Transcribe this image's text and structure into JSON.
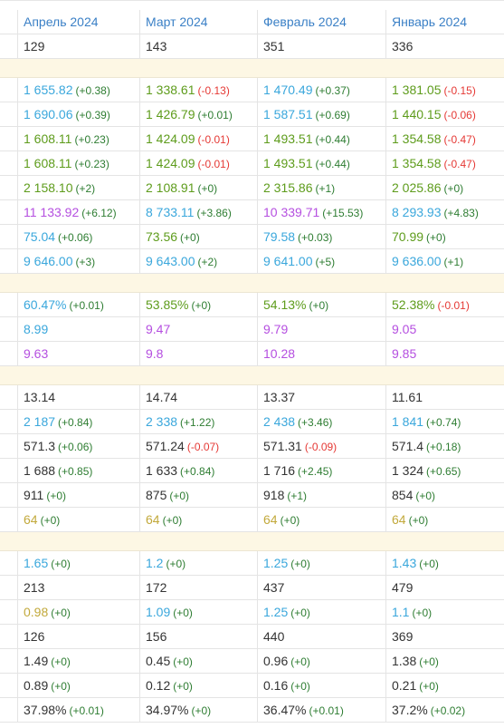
{
  "header": [
    "Апрель 2024",
    "Март 2024",
    "Февраль 2024",
    "Январь 2024"
  ],
  "sections": [
    {
      "rows": [
        [
          {
            "text": "129",
            "color": "#333333"
          },
          {
            "text": "143",
            "color": "#333333"
          },
          {
            "text": "351",
            "color": "#333333"
          },
          {
            "text": "336",
            "color": "#333333"
          }
        ]
      ]
    },
    {
      "rows": [
        [
          {
            "text": "1 655.82",
            "delta": "(+0.38)",
            "color": "#3aa7dc"
          },
          {
            "text": "1 338.61",
            "delta": "(-0.13)",
            "color": "#5e9c1c"
          },
          {
            "text": "1 470.49",
            "delta": "(+0.37)",
            "color": "#3aa7dc"
          },
          {
            "text": "1 381.05",
            "delta": "(-0.15)",
            "color": "#5e9c1c"
          }
        ],
        [
          {
            "text": "1 690.06",
            "delta": "(+0.39)",
            "color": "#3aa7dc"
          },
          {
            "text": "1 426.79",
            "delta": "(+0.01)",
            "color": "#5e9c1c"
          },
          {
            "text": "1 587.51",
            "delta": "(+0.69)",
            "color": "#3aa7dc"
          },
          {
            "text": "1 440.15",
            "delta": "(-0.06)",
            "color": "#5e9c1c"
          }
        ],
        [
          {
            "text": "1 608.11",
            "delta": "(+0.23)",
            "color": "#5e9c1c"
          },
          {
            "text": "1 424.09",
            "delta": "(-0.01)",
            "color": "#5e9c1c"
          },
          {
            "text": "1 493.51",
            "delta": "(+0.44)",
            "color": "#5e9c1c"
          },
          {
            "text": "1 354.58",
            "delta": "(-0.47)",
            "color": "#5e9c1c"
          }
        ],
        [
          {
            "text": "1 608.11",
            "delta": "(+0.23)",
            "color": "#5e9c1c"
          },
          {
            "text": "1 424.09",
            "delta": "(-0.01)",
            "color": "#5e9c1c"
          },
          {
            "text": "1 493.51",
            "delta": "(+0.44)",
            "color": "#5e9c1c"
          },
          {
            "text": "1 354.58",
            "delta": "(-0.47)",
            "color": "#5e9c1c"
          }
        ],
        [
          {
            "text": "2 158.10",
            "delta": "(+2)",
            "color": "#5e9c1c"
          },
          {
            "text": "2 108.91",
            "delta": "(+0)",
            "color": "#5e9c1c"
          },
          {
            "text": "2 315.86",
            "delta": "(+1)",
            "color": "#5e9c1c"
          },
          {
            "text": "2 025.86",
            "delta": "(+0)",
            "color": "#5e9c1c"
          }
        ],
        [
          {
            "text": "11 133.92",
            "delta": "(+6.12)",
            "color": "#b54fe0"
          },
          {
            "text": "8 733.11",
            "delta": "(+3.86)",
            "color": "#3aa7dc"
          },
          {
            "text": "10 339.71",
            "delta": "(+15.53)",
            "color": "#b54fe0"
          },
          {
            "text": "8 293.93",
            "delta": "(+4.83)",
            "color": "#3aa7dc"
          }
        ],
        [
          {
            "text": "75.04",
            "delta": "(+0.06)",
            "color": "#3aa7dc"
          },
          {
            "text": "73.56",
            "delta": "(+0)",
            "color": "#5e9c1c"
          },
          {
            "text": "79.58",
            "delta": "(+0.03)",
            "color": "#3aa7dc"
          },
          {
            "text": "70.99",
            "delta": "(+0)",
            "color": "#5e9c1c"
          }
        ],
        [
          {
            "text": "9 646.00",
            "delta": "(+3)",
            "color": "#3aa7dc"
          },
          {
            "text": "9 643.00",
            "delta": "(+2)",
            "color": "#3aa7dc"
          },
          {
            "text": "9 641.00",
            "delta": "(+5)",
            "color": "#3aa7dc"
          },
          {
            "text": "9 636.00",
            "delta": "(+1)",
            "color": "#3aa7dc"
          }
        ]
      ]
    },
    {
      "rows": [
        [
          {
            "text": "60.47%",
            "delta": "(+0.01)",
            "color": "#3aa7dc"
          },
          {
            "text": "53.85%",
            "delta": "(+0)",
            "color": "#5e9c1c"
          },
          {
            "text": "54.13%",
            "delta": "(+0)",
            "color": "#5e9c1c"
          },
          {
            "text": "52.38%",
            "delta": "(-0.01)",
            "color": "#5e9c1c"
          }
        ],
        [
          {
            "text": "8.99",
            "color": "#3aa7dc"
          },
          {
            "text": "9.47",
            "color": "#b54fe0"
          },
          {
            "text": "9.79",
            "color": "#b54fe0"
          },
          {
            "text": "9.05",
            "color": "#b54fe0"
          }
        ],
        [
          {
            "text": "9.63",
            "color": "#b54fe0"
          },
          {
            "text": "9.8",
            "color": "#b54fe0"
          },
          {
            "text": "10.28",
            "color": "#b54fe0"
          },
          {
            "text": "9.85",
            "color": "#b54fe0"
          }
        ]
      ]
    },
    {
      "rows": [
        [
          {
            "text": "13.14",
            "color": "#333333"
          },
          {
            "text": "14.74",
            "color": "#333333"
          },
          {
            "text": "13.37",
            "color": "#333333"
          },
          {
            "text": "11.61",
            "color": "#333333"
          }
        ],
        [
          {
            "text": "2 187",
            "delta": "(+0.84)",
            "color": "#3aa7dc"
          },
          {
            "text": "2 338",
            "delta": "(+1.22)",
            "color": "#3aa7dc"
          },
          {
            "text": "2 438",
            "delta": "(+3.46)",
            "color": "#3aa7dc"
          },
          {
            "text": "1 841",
            "delta": "(+0.74)",
            "color": "#3aa7dc"
          }
        ],
        [
          {
            "text": "571.3",
            "delta": "(+0.06)",
            "color": "#333333"
          },
          {
            "text": "571.24",
            "delta": "(-0.07)",
            "color": "#333333"
          },
          {
            "text": "571.31",
            "delta": "(-0.09)",
            "color": "#333333"
          },
          {
            "text": "571.4",
            "delta": "(+0.18)",
            "color": "#333333"
          }
        ],
        [
          {
            "text": "1 688",
            "delta": "(+0.85)",
            "color": "#333333"
          },
          {
            "text": "1 633",
            "delta": "(+0.84)",
            "color": "#333333"
          },
          {
            "text": "1 716",
            "delta": "(+2.45)",
            "color": "#333333"
          },
          {
            "text": "1 324",
            "delta": "(+0.65)",
            "color": "#333333"
          }
        ],
        [
          {
            "text": "911",
            "delta": "(+0)",
            "color": "#333333"
          },
          {
            "text": "875",
            "delta": "(+0)",
            "color": "#333333"
          },
          {
            "text": "918",
            "delta": "(+1)",
            "color": "#333333"
          },
          {
            "text": "854",
            "delta": "(+0)",
            "color": "#333333"
          }
        ],
        [
          {
            "text": "64",
            "delta": "(+0)",
            "color": "#c2a93b"
          },
          {
            "text": "64",
            "delta": "(+0)",
            "color": "#c2a93b"
          },
          {
            "text": "64",
            "delta": "(+0)",
            "color": "#c2a93b"
          },
          {
            "text": "64",
            "delta": "(+0)",
            "color": "#c2a93b"
          }
        ]
      ]
    },
    {
      "rows": [
        [
          {
            "text": "1.65",
            "delta": "(+0)",
            "color": "#3aa7dc"
          },
          {
            "text": "1.2",
            "delta": "(+0)",
            "color": "#3aa7dc"
          },
          {
            "text": "1.25",
            "delta": "(+0)",
            "color": "#3aa7dc"
          },
          {
            "text": "1.43",
            "delta": "(+0)",
            "color": "#3aa7dc"
          }
        ],
        [
          {
            "text": "213",
            "color": "#333333"
          },
          {
            "text": "172",
            "color": "#333333"
          },
          {
            "text": "437",
            "color": "#333333"
          },
          {
            "text": "479",
            "color": "#333333"
          }
        ],
        [
          {
            "text": "0.98",
            "delta": "(+0)",
            "color": "#c2a93b"
          },
          {
            "text": "1.09",
            "delta": "(+0)",
            "color": "#3aa7dc"
          },
          {
            "text": "1.25",
            "delta": "(+0)",
            "color": "#3aa7dc"
          },
          {
            "text": "1.1",
            "delta": "(+0)",
            "color": "#3aa7dc"
          }
        ],
        [
          {
            "text": "126",
            "color": "#333333"
          },
          {
            "text": "156",
            "color": "#333333"
          },
          {
            "text": "440",
            "color": "#333333"
          },
          {
            "text": "369",
            "color": "#333333"
          }
        ],
        [
          {
            "text": "1.49",
            "delta": "(+0)",
            "color": "#333333"
          },
          {
            "text": "0.45",
            "delta": "(+0)",
            "color": "#333333"
          },
          {
            "text": "0.96",
            "delta": "(+0)",
            "color": "#333333"
          },
          {
            "text": "1.38",
            "delta": "(+0)",
            "color": "#333333"
          }
        ],
        [
          {
            "text": "0.89",
            "delta": "(+0)",
            "color": "#333333"
          },
          {
            "text": "0.12",
            "delta": "(+0)",
            "color": "#333333"
          },
          {
            "text": "0.16",
            "delta": "(+0)",
            "color": "#333333"
          },
          {
            "text": "0.21",
            "delta": "(+0)",
            "color": "#333333"
          }
        ],
        [
          {
            "text": "37.98%",
            "delta": "(+0.01)",
            "color": "#333333"
          },
          {
            "text": "34.97%",
            "delta": "(+0)",
            "color": "#333333"
          },
          {
            "text": "36.47%",
            "delta": "(+0.01)",
            "color": "#333333"
          },
          {
            "text": "37.2%",
            "delta": "(+0.02)",
            "color": "#333333"
          }
        ]
      ]
    }
  ]
}
